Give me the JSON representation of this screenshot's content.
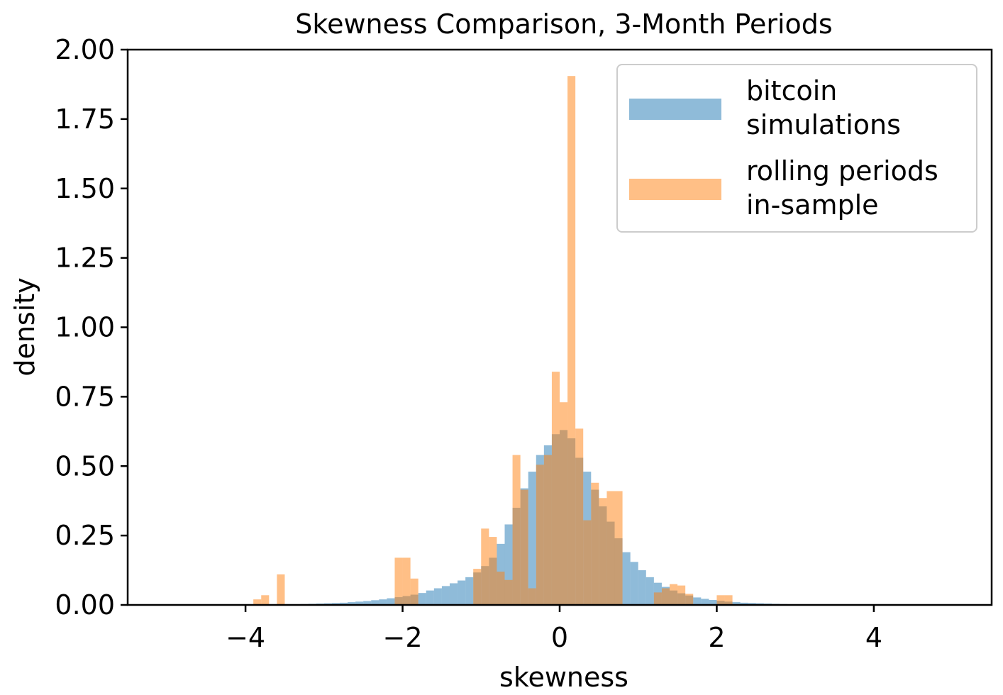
{
  "chart_data": {
    "type": "bar",
    "title": "Skewness Comparison, 3-Month Periods",
    "xlabel": "skewness",
    "ylabel": "density",
    "xlim": [
      -5.5,
      5.5
    ],
    "ylim": [
      0,
      2.0
    ],
    "xticks": [
      -4,
      -2,
      0,
      2,
      4
    ],
    "xtick_labels": [
      "−4",
      "−2",
      "0",
      "2",
      "4"
    ],
    "yticks": [
      0,
      0.25,
      0.5,
      0.75,
      1.0,
      1.25,
      1.5,
      1.75,
      2.0
    ],
    "ytick_labels": [
      "0.00",
      "0.25",
      "0.50",
      "0.75",
      "1.00",
      "1.25",
      "1.50",
      "1.75",
      "2.00"
    ],
    "grid": false,
    "legend_position": "top-right",
    "series": [
      {
        "name": "bitcoin simulations",
        "color": "#1f77b4",
        "opacity": 0.5,
        "bin_width": 0.1,
        "bins": [
          [
            -3.5,
            -3.4,
            0.002
          ],
          [
            -3.4,
            -3.3,
            0.002
          ],
          [
            -3.3,
            -3.2,
            0.003
          ],
          [
            -3.2,
            -3.1,
            0.004
          ],
          [
            -3.1,
            -3.0,
            0.005
          ],
          [
            -3.0,
            -2.9,
            0.006
          ],
          [
            -2.9,
            -2.8,
            0.007
          ],
          [
            -2.8,
            -2.7,
            0.008
          ],
          [
            -2.7,
            -2.6,
            0.01
          ],
          [
            -2.6,
            -2.5,
            0.012
          ],
          [
            -2.5,
            -2.4,
            0.014
          ],
          [
            -2.4,
            -2.3,
            0.017
          ],
          [
            -2.3,
            -2.2,
            0.02
          ],
          [
            -2.2,
            -2.1,
            0.024
          ],
          [
            -2.1,
            -2.0,
            0.028
          ],
          [
            -2.0,
            -1.9,
            0.032
          ],
          [
            -1.9,
            -1.8,
            0.037
          ],
          [
            -1.8,
            -1.7,
            0.043
          ],
          [
            -1.7,
            -1.6,
            0.052
          ],
          [
            -1.6,
            -1.5,
            0.06
          ],
          [
            -1.5,
            -1.4,
            0.068
          ],
          [
            -1.4,
            -1.3,
            0.078
          ],
          [
            -1.3,
            -1.2,
            0.088
          ],
          [
            -1.2,
            -1.1,
            0.1
          ],
          [
            -1.1,
            -1.0,
            0.117
          ],
          [
            -1.0,
            -0.9,
            0.14
          ],
          [
            -0.9,
            -0.8,
            0.17
          ],
          [
            -0.8,
            -0.7,
            0.22
          ],
          [
            -0.7,
            -0.6,
            0.29
          ],
          [
            -0.6,
            -0.5,
            0.35
          ],
          [
            -0.5,
            -0.4,
            0.42
          ],
          [
            -0.4,
            -0.3,
            0.48
          ],
          [
            -0.3,
            -0.2,
            0.54
          ],
          [
            -0.2,
            -0.1,
            0.575
          ],
          [
            -0.1,
            0.0,
            0.615
          ],
          [
            0.0,
            0.1,
            0.63
          ],
          [
            0.1,
            0.2,
            0.6
          ],
          [
            0.2,
            0.3,
            0.53
          ],
          [
            0.3,
            0.4,
            0.48
          ],
          [
            0.4,
            0.5,
            0.415
          ],
          [
            0.5,
            0.6,
            0.355
          ],
          [
            0.6,
            0.7,
            0.3
          ],
          [
            0.7,
            0.8,
            0.24
          ],
          [
            0.8,
            0.9,
            0.19
          ],
          [
            0.9,
            1.0,
            0.155
          ],
          [
            1.0,
            1.1,
            0.125
          ],
          [
            1.1,
            1.2,
            0.1
          ],
          [
            1.2,
            1.3,
            0.08
          ],
          [
            1.3,
            1.4,
            0.065
          ],
          [
            1.4,
            1.5,
            0.052
          ],
          [
            1.5,
            1.6,
            0.042
          ],
          [
            1.6,
            1.7,
            0.034
          ],
          [
            1.7,
            1.8,
            0.027
          ],
          [
            1.8,
            1.9,
            0.022
          ],
          [
            1.9,
            2.0,
            0.018
          ],
          [
            2.0,
            2.1,
            0.015
          ],
          [
            2.1,
            2.2,
            0.012
          ],
          [
            2.2,
            2.3,
            0.01
          ],
          [
            2.3,
            2.4,
            0.008
          ],
          [
            2.4,
            2.5,
            0.007
          ],
          [
            2.5,
            2.6,
            0.006
          ],
          [
            2.6,
            2.7,
            0.005
          ],
          [
            2.7,
            2.8,
            0.004
          ],
          [
            2.8,
            2.9,
            0.003
          ]
        ]
      },
      {
        "name": "rolling periods in-sample",
        "color": "#ff7f0e",
        "opacity": 0.5,
        "bin_width": 0.1,
        "bins": [
          [
            -3.9,
            -3.8,
            0.02
          ],
          [
            -3.8,
            -3.7,
            0.035
          ],
          [
            -3.6,
            -3.5,
            0.11
          ],
          [
            -2.1,
            -2.0,
            0.17
          ],
          [
            -2.0,
            -1.9,
            0.17
          ],
          [
            -1.9,
            -1.8,
            0.095
          ],
          [
            -1.1,
            -1.0,
            0.13
          ],
          [
            -1.0,
            -0.9,
            0.275
          ],
          [
            -0.9,
            -0.8,
            0.245
          ],
          [
            -0.8,
            -0.7,
            0.12
          ],
          [
            -0.7,
            -0.6,
            0.09
          ],
          [
            -0.6,
            -0.5,
            0.54
          ],
          [
            -0.5,
            -0.4,
            0.415
          ],
          [
            -0.4,
            -0.3,
            0.06
          ],
          [
            -0.3,
            -0.2,
            0.505
          ],
          [
            -0.2,
            -0.1,
            0.54
          ],
          [
            -0.1,
            0.0,
            0.84
          ],
          [
            0.0,
            0.1,
            0.73
          ],
          [
            0.1,
            0.2,
            1.905
          ],
          [
            0.2,
            0.3,
            0.635
          ],
          [
            0.3,
            0.4,
            0.305
          ],
          [
            0.4,
            0.5,
            0.44
          ],
          [
            0.5,
            0.6,
            0.385
          ],
          [
            0.6,
            0.7,
            0.41
          ],
          [
            0.7,
            0.8,
            0.41
          ],
          [
            1.2,
            1.3,
            0.045
          ],
          [
            1.3,
            1.4,
            0.06
          ],
          [
            1.4,
            1.5,
            0.075
          ],
          [
            1.5,
            1.6,
            0.07
          ],
          [
            1.6,
            1.7,
            0.04
          ],
          [
            2.0,
            2.1,
            0.035
          ],
          [
            2.1,
            2.2,
            0.035
          ]
        ]
      }
    ]
  },
  "legend": {
    "entries": [
      {
        "line1": "bitcoin",
        "line2": "simulations"
      },
      {
        "line1": "rolling periods",
        "line2": "in-sample"
      }
    ]
  }
}
